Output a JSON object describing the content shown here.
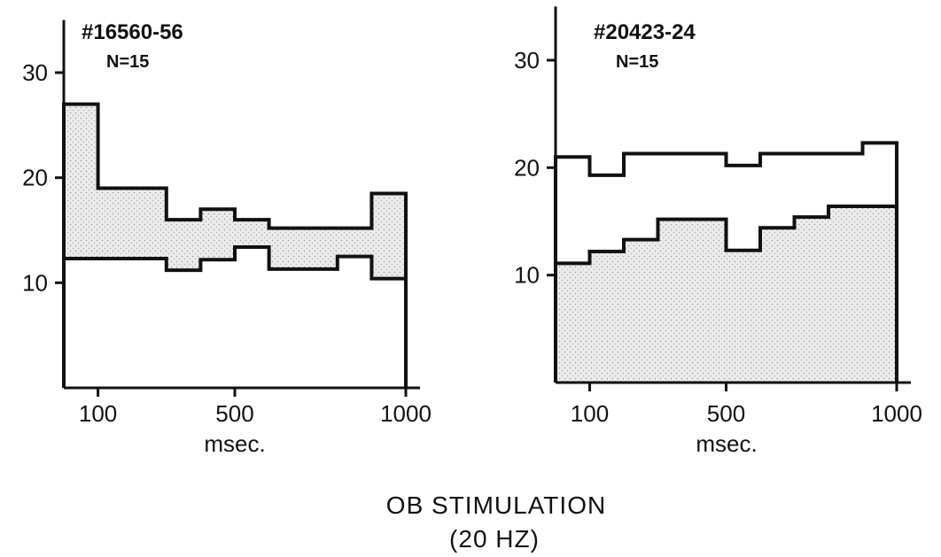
{
  "chart_data": [
    {
      "type": "area",
      "id_label": "#16560-56",
      "n_label": "N=15",
      "xlabel": "msec.",
      "x_ticks": [
        100,
        500,
        1000
      ],
      "y_ticks": [
        10,
        20,
        30
      ],
      "xlim": [
        0,
        1000
      ],
      "ylim": [
        0,
        35
      ],
      "bin_edges": [
        0,
        100,
        300,
        400,
        500,
        600,
        800,
        900,
        1000
      ],
      "series": [
        {
          "values": [
            27,
            19,
            16,
            17,
            16,
            15.2,
            15.2,
            18.5
          ]
        },
        {
          "values": [
            12.3,
            12.3,
            11.2,
            12.2,
            13.4,
            11.3,
            12.5,
            10.4
          ]
        }
      ],
      "shade_between": true
    },
    {
      "type": "area",
      "id_label": "#20423-24",
      "n_label": "N=15",
      "xlabel": "msec.",
      "x_ticks": [
        100,
        500,
        1000
      ],
      "y_ticks": [
        10,
        20,
        30
      ],
      "xlim": [
        0,
        1000
      ],
      "ylim": [
        0,
        35
      ],
      "bin_edges": [
        0,
        100,
        200,
        300,
        500,
        600,
        700,
        800,
        900,
        1000
      ],
      "series": [
        {
          "values": [
            21,
            19.3,
            21.3,
            21.3,
            20.2,
            21.3,
            21.3,
            21.3,
            22.3
          ]
        },
        {
          "values": [
            11.1,
            12.2,
            13.3,
            15.2,
            12.3,
            14.4,
            15.4,
            16.4,
            16.4
          ]
        }
      ],
      "shade_between": false
    }
  ],
  "caption": {
    "line1": "OB  STIMULATION",
    "line2": "(20 HZ)"
  }
}
